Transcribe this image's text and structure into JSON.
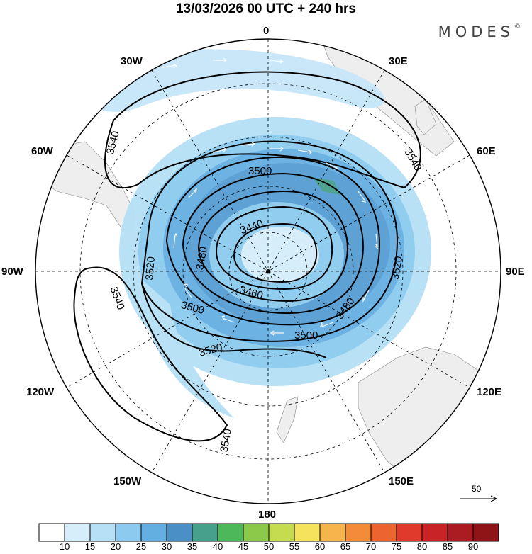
{
  "title": "13/03/2026  00 UTC  + 240 hrs",
  "brand": "MODES",
  "brand_mark": "©",
  "meridians": {
    "north": "0",
    "south": "180",
    "east": "90E",
    "west": "90W",
    "n30e": "30E",
    "n30w": "30W",
    "n60e": "60E",
    "n60w": "60W",
    "s120e": "120E",
    "s120w": "120W",
    "s150e": "150E",
    "s150w": "150W"
  },
  "contour_labels": [
    "3540",
    "3540",
    "3500",
    "3440",
    "3480",
    "3520",
    "3460",
    "3480",
    "3500",
    "3500",
    "3520",
    "3520",
    "3540",
    "3540"
  ],
  "reference_vector": "50",
  "colorbar": {
    "ticks": [
      "10",
      "15",
      "20",
      "25",
      "30",
      "35",
      "40",
      "45",
      "50",
      "55",
      "60",
      "65",
      "70",
      "75",
      "80",
      "85",
      "90"
    ],
    "colors": [
      "#ffffff",
      "#d5eefa",
      "#b6e0f6",
      "#8ccbef",
      "#65aee2",
      "#4a90c6",
      "#46a08c",
      "#4cb85a",
      "#8cc84a",
      "#c6dc50",
      "#f6e25c",
      "#f6b44c",
      "#f28c38",
      "#ec6430",
      "#e03a2c",
      "#c82428",
      "#aa1c22",
      "#8e1418"
    ]
  }
}
